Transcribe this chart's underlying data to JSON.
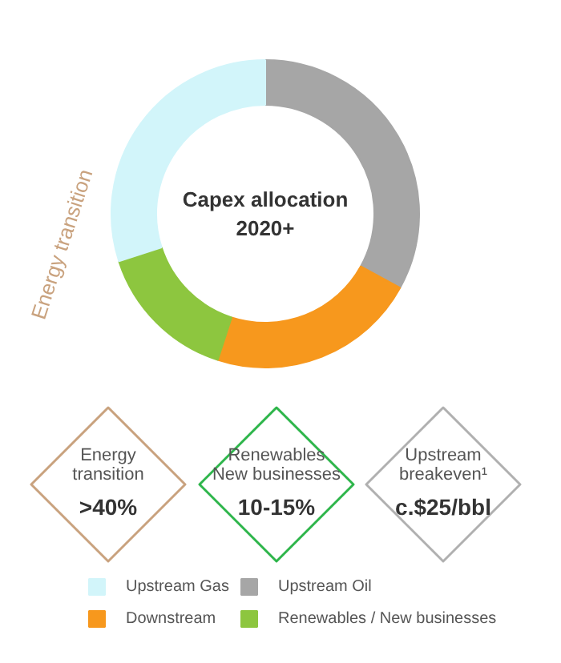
{
  "chart_data": {
    "type": "donut",
    "title": "Capex allocation\n2020+",
    "categories": [
      "Upstream Oil",
      "Downstream",
      "Renewables / New businesses",
      "Upstream Gas"
    ],
    "values": [
      33,
      22,
      15,
      30
    ],
    "colors": [
      "#a6a6a6",
      "#f7981d",
      "#8dc63f",
      "#d2f5fa"
    ],
    "legend": "bottom",
    "annotations": [
      "Energy transition",
      "Energy\ntransition",
      ">40%",
      "Renewables\nNew businesses",
      "10-15%",
      "Upstream\nbreakeven¹",
      "c.$25/bbl"
    ]
  }
}
